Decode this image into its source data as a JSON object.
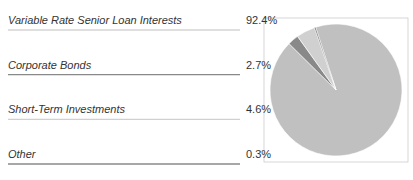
{
  "chart_data": {
    "type": "pie",
    "categories": [
      "Variable Rate Senior Loan Interests",
      "Corporate Bonds",
      "Short-Term Investments",
      "Other"
    ],
    "values": [
      92.4,
      2.7,
      4.6,
      0.3
    ],
    "value_labels": [
      "92.4%",
      "2.7%",
      "4.6%",
      "0.3%"
    ],
    "colors": [
      "#c0c0c0",
      "#898989",
      "#d0d0d0",
      "#505050"
    ],
    "legend": "left"
  }
}
